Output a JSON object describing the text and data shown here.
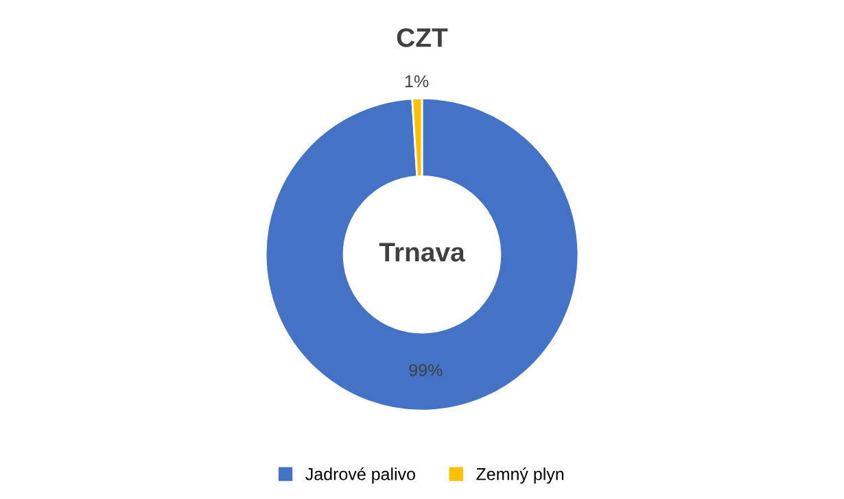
{
  "chart_data": {
    "type": "donut",
    "title": "CZT",
    "categories": [
      "Jadrové palivo",
      "Zemný plyn"
    ],
    "values": [
      99,
      1
    ],
    "colors": [
      "#4472c4",
      "#ffc000"
    ],
    "value_labels": [
      "99%",
      "1%"
    ],
    "annotations": [
      "Trnava"
    ],
    "legend": "bottom"
  }
}
